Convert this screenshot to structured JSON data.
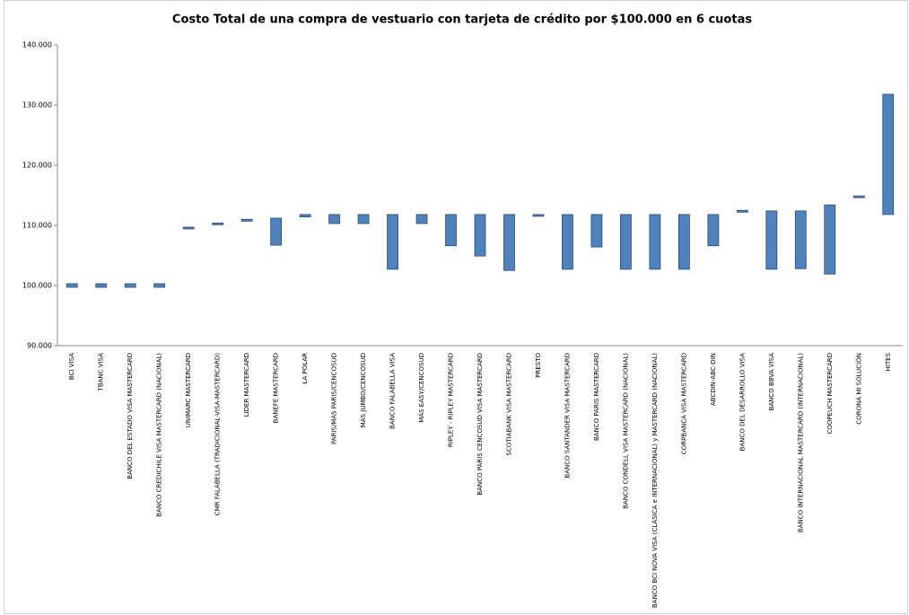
{
  "chart_data": {
    "type": "range_bar",
    "title": "Costo Total de una compra de vestuario con tarjeta de crédito por $100.000  en 6 cuotas",
    "categories": [
      "BCI VISA",
      "TBANC VISA",
      "BANCO DEL ESTADO VISA MASTERCARD",
      "BANCO CREDICHILE VISA MASTERCARD (NACIONAL)",
      "UNIMARC MASTERCARD",
      "CMR FALABELLA (TRADICIONAL-VISA-MASTERCARD)",
      "LIDER MASTERCARD",
      "BANEFE MASTERCARD",
      "LA POLAR",
      "PARIS/MÁS PARIS/CENCOSUD",
      "MÁS JUMBO/CENCOSUD",
      "BANCO FALABELLA VISA",
      "MÁS EASY/CENCOSUD",
      "RIPLEY - RIPLEY MASTERCARD",
      "BANCO PARIS CENCOSUD VISA MASTERCARD",
      "SCOTIABANK VISA MASTERCARD",
      "PRESTO",
      "BANCO SANTANDER VISA MASTERCARD",
      "BANCO PARIS MASTERCARD",
      "BANCO CONDELL VISA MASTERCARD (NACIONAL)",
      "BANCO BCI NOVA VISA (CLÁSICA e INTERNACIONAL) y MASTERCARD (NACIONAL)",
      "CORPBANCA VISA MASTERCARD",
      "ABCDIN-ABC-DIN",
      "BANCO DEL DESARROLLO VISA",
      "BANCO BBVA VISA",
      "BANCO INTERNACIONAL MASTERCARD (INTERNACIONAL)",
      "COOPEUCH MASTERCARD",
      "CORONA MI SOLUCIÓN",
      "HITES"
    ],
    "low": [
      99700,
      99700,
      99700,
      99700,
      109400,
      110100,
      110700,
      106700,
      111400,
      110300,
      110300,
      102700,
      110300,
      106600,
      104900,
      102500,
      111500,
      102700,
      106400,
      102700,
      102700,
      102700,
      106600,
      112200,
      102700,
      102800,
      101900,
      114600,
      111800
    ],
    "high": [
      100300,
      100300,
      100300,
      100300,
      109700,
      110400,
      111000,
      111200,
      111800,
      111800,
      111800,
      111800,
      111800,
      111800,
      111800,
      111800,
      111800,
      111800,
      111800,
      111800,
      111800,
      111800,
      111800,
      112500,
      112400,
      112400,
      113400,
      114900,
      131800
    ],
    "color": "#4f81bd",
    "ylim": [
      90000,
      140000
    ],
    "yticks": [
      {
        "value": 90000,
        "label": "90.000"
      },
      {
        "value": 100000,
        "label": "100.000"
      },
      {
        "value": 110000,
        "label": "110.000"
      },
      {
        "value": 120000,
        "label": "120.000"
      },
      {
        "value": 130000,
        "label": "130.000"
      },
      {
        "value": 140000,
        "label": "140.000"
      }
    ],
    "grid": false
  }
}
